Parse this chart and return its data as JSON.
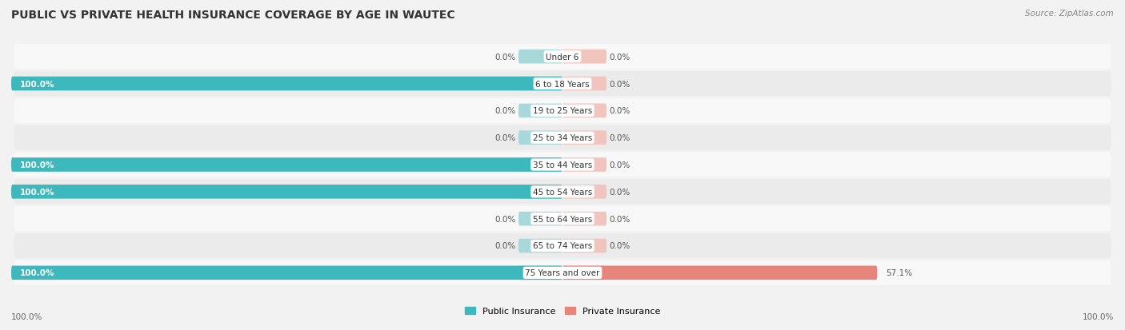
{
  "title": "PUBLIC VS PRIVATE HEALTH INSURANCE COVERAGE BY AGE IN WAUTEC",
  "source": "Source: ZipAtlas.com",
  "categories": [
    "Under 6",
    "6 to 18 Years",
    "19 to 25 Years",
    "25 to 34 Years",
    "35 to 44 Years",
    "45 to 54 Years",
    "55 to 64 Years",
    "65 to 74 Years",
    "75 Years and over"
  ],
  "public_values": [
    0.0,
    100.0,
    0.0,
    0.0,
    100.0,
    100.0,
    0.0,
    0.0,
    100.0
  ],
  "private_values": [
    0.0,
    0.0,
    0.0,
    0.0,
    0.0,
    0.0,
    0.0,
    0.0,
    57.1
  ],
  "public_color": "#3db8bc",
  "private_color": "#e8857a",
  "public_bg_color": "#a8d8da",
  "private_bg_color": "#f2c4be",
  "public_label": "Public Insurance",
  "private_label": "Private Insurance",
  "background_color": "#f2f2f2",
  "row_bg_light": "#f8f8f8",
  "row_bg_dark": "#ebebeb",
  "axis_label_left": "100.0%",
  "axis_label_right": "100.0%",
  "title_fontsize": 10,
  "source_fontsize": 7.5,
  "bar_label_fontsize": 7.5,
  "category_fontsize": 7.5,
  "legend_fontsize": 8,
  "max_value": 100.0,
  "bar_bg_min_pct": 8.0
}
